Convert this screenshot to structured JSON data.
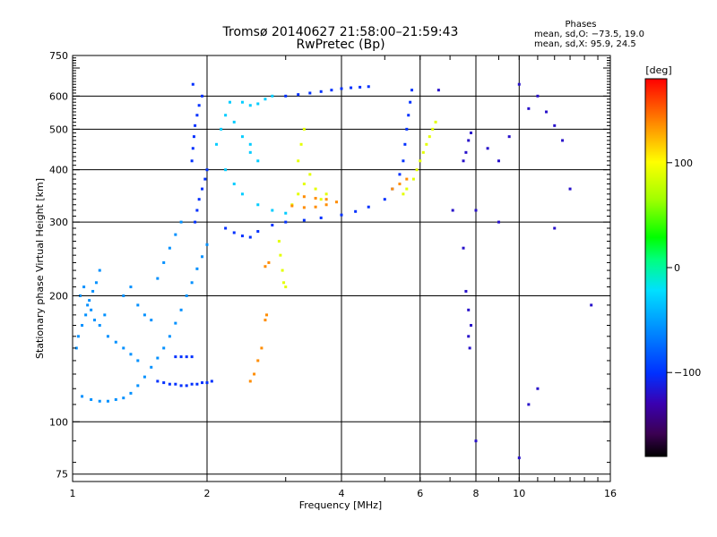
{
  "chart_data": {
    "type": "scatter",
    "title": "Tromsø 20140627 21:58:00–21:59:43",
    "subtitle": "RwPretec (Bp)",
    "phases": {
      "heading": "Phases",
      "line1": "mean, sd,O: −73.5, 19.0",
      "line2": "mean, sd,X:  95.9, 24.5"
    },
    "xlabel": "Frequency [MHz]",
    "ylabel": "Stationary phase Virtual Height [km]",
    "x_scale": "log",
    "y_scale": "log",
    "xlim": [
      1,
      16
    ],
    "ylim": [
      72,
      750
    ],
    "x_ticks": [
      1,
      2,
      4,
      6,
      8,
      10,
      16
    ],
    "x_tick_labels": [
      "1",
      "2",
      "4",
      "6",
      "8",
      "10",
      "16"
    ],
    "y_ticks": [
      75,
      100,
      200,
      300,
      400,
      500,
      600,
      750
    ],
    "y_tick_labels": [
      "75",
      "100",
      "200",
      "300",
      "400",
      "500",
      "600",
      "750"
    ],
    "grid": true,
    "colorbar": {
      "label": "[deg]",
      "range": [
        -180,
        180
      ],
      "ticks": [
        100,
        0,
        -100
      ],
      "tick_labels": [
        "100",
        "0",
        "−100"
      ]
    },
    "series": [
      {
        "color_hint": "light-blue",
        "phase": -60,
        "points": [
          [
            1.05,
            115
          ],
          [
            1.1,
            113
          ],
          [
            1.15,
            112
          ],
          [
            1.2,
            112
          ],
          [
            1.25,
            113
          ],
          [
            1.3,
            114
          ],
          [
            1.35,
            117
          ],
          [
            1.4,
            122
          ],
          [
            1.45,
            128
          ],
          [
            1.5,
            135
          ],
          [
            1.55,
            142
          ],
          [
            1.6,
            150
          ],
          [
            1.65,
            160
          ],
          [
            1.7,
            172
          ],
          [
            1.75,
            185
          ],
          [
            1.8,
            200
          ],
          [
            1.85,
            215
          ],
          [
            1.9,
            232
          ],
          [
            1.95,
            248
          ],
          [
            2.0,
            265
          ],
          [
            1.04,
            200
          ],
          [
            1.06,
            210
          ],
          [
            1.08,
            190
          ],
          [
            1.1,
            185
          ],
          [
            1.12,
            175
          ],
          [
            1.15,
            170
          ],
          [
            1.18,
            180
          ],
          [
            1.2,
            160
          ],
          [
            1.25,
            155
          ],
          [
            1.3,
            150
          ],
          [
            1.35,
            145
          ],
          [
            1.4,
            140
          ],
          [
            1.02,
            150
          ],
          [
            1.03,
            160
          ],
          [
            1.05,
            170
          ],
          [
            1.07,
            180
          ],
          [
            1.09,
            195
          ],
          [
            1.11,
            205
          ],
          [
            1.13,
            215
          ],
          [
            1.15,
            230
          ],
          [
            1.3,
            200
          ],
          [
            1.35,
            210
          ],
          [
            1.4,
            190
          ],
          [
            1.45,
            180
          ],
          [
            1.5,
            175
          ],
          [
            1.55,
            220
          ],
          [
            1.6,
            240
          ],
          [
            1.65,
            260
          ],
          [
            1.7,
            280
          ],
          [
            1.75,
            300
          ]
        ]
      },
      {
        "color_hint": "blue",
        "phase": -100,
        "points": [
          [
            1.55,
            125
          ],
          [
            1.6,
            124
          ],
          [
            1.65,
            123
          ],
          [
            1.7,
            123
          ],
          [
            1.75,
            122
          ],
          [
            1.8,
            122
          ],
          [
            1.85,
            123
          ],
          [
            1.9,
            123
          ],
          [
            1.95,
            124
          ],
          [
            2.0,
            124
          ],
          [
            2.05,
            125
          ],
          [
            1.7,
            143
          ],
          [
            1.75,
            143
          ],
          [
            1.8,
            143
          ],
          [
            1.85,
            143
          ],
          [
            1.88,
            300
          ],
          [
            1.9,
            320
          ],
          [
            1.92,
            340
          ],
          [
            1.95,
            360
          ],
          [
            1.98,
            380
          ],
          [
            2.0,
            400
          ],
          [
            1.85,
            420
          ],
          [
            1.86,
            450
          ],
          [
            1.87,
            480
          ],
          [
            1.88,
            510
          ],
          [
            1.9,
            540
          ],
          [
            1.92,
            570
          ],
          [
            1.95,
            600
          ],
          [
            1.86,
            640
          ],
          [
            2.2,
            290
          ],
          [
            2.3,
            283
          ],
          [
            2.4,
            278
          ],
          [
            2.5,
            276
          ],
          [
            2.6,
            285
          ],
          [
            2.8,
            295
          ],
          [
            3.0,
            300
          ],
          [
            3.3,
            303
          ],
          [
            3.6,
            307
          ],
          [
            4.0,
            312
          ],
          [
            4.3,
            318
          ],
          [
            4.6,
            326
          ],
          [
            5.0,
            340
          ],
          [
            5.2,
            360
          ],
          [
            5.4,
            390
          ],
          [
            5.5,
            420
          ],
          [
            5.55,
            460
          ],
          [
            5.6,
            500
          ],
          [
            5.65,
            540
          ],
          [
            5.7,
            580
          ],
          [
            5.75,
            620
          ],
          [
            3.0,
            600
          ],
          [
            3.2,
            605
          ],
          [
            3.4,
            610
          ],
          [
            3.6,
            615
          ],
          [
            3.8,
            620
          ],
          [
            4.0,
            625
          ],
          [
            4.2,
            628
          ],
          [
            4.4,
            630
          ],
          [
            4.6,
            632
          ]
        ]
      },
      {
        "color_hint": "cyan",
        "phase": -30,
        "points": [
          [
            2.4,
            580
          ],
          [
            2.5,
            570
          ],
          [
            2.6,
            575
          ],
          [
            2.7,
            590
          ],
          [
            2.8,
            600
          ],
          [
            2.3,
            520
          ],
          [
            2.4,
            480
          ],
          [
            2.5,
            440
          ],
          [
            2.2,
            400
          ],
          [
            2.3,
            370
          ],
          [
            2.4,
            350
          ],
          [
            2.6,
            330
          ],
          [
            2.8,
            320
          ],
          [
            3.0,
            315
          ],
          [
            2.1,
            460
          ],
          [
            2.15,
            500
          ],
          [
            2.2,
            540
          ],
          [
            2.25,
            580
          ],
          [
            2.5,
            460
          ],
          [
            2.6,
            420
          ]
        ]
      },
      {
        "color_hint": "yellow",
        "phase": 90,
        "points": [
          [
            2.9,
            270
          ],
          [
            2.92,
            250
          ],
          [
            2.95,
            230
          ],
          [
            2.97,
            215
          ],
          [
            3.0,
            210
          ],
          [
            3.1,
            330
          ],
          [
            3.2,
            350
          ],
          [
            3.3,
            370
          ],
          [
            3.4,
            390
          ],
          [
            3.5,
            360
          ],
          [
            3.6,
            340
          ],
          [
            3.7,
            350
          ],
          [
            3.2,
            420
          ],
          [
            3.25,
            460
          ],
          [
            3.3,
            500
          ],
          [
            5.8,
            380
          ],
          [
            5.9,
            400
          ],
          [
            6.0,
            420
          ],
          [
            6.1,
            440
          ],
          [
            6.2,
            460
          ],
          [
            6.3,
            480
          ],
          [
            6.4,
            500
          ],
          [
            6.5,
            520
          ],
          [
            5.6,
            360
          ],
          [
            5.5,
            350
          ]
        ]
      },
      {
        "color_hint": "orange",
        "phase": 140,
        "points": [
          [
            3.1,
            328
          ],
          [
            3.3,
            325
          ],
          [
            3.5,
            326
          ],
          [
            3.7,
            330
          ],
          [
            3.9,
            335
          ],
          [
            3.3,
            345
          ],
          [
            3.5,
            342
          ],
          [
            3.7,
            340
          ],
          [
            2.5,
            125
          ],
          [
            2.55,
            130
          ],
          [
            2.6,
            140
          ],
          [
            2.65,
            150
          ],
          [
            2.7,
            175
          ],
          [
            2.72,
            180
          ],
          [
            5.2,
            360
          ],
          [
            5.4,
            370
          ],
          [
            5.6,
            380
          ],
          [
            2.7,
            235
          ],
          [
            2.75,
            240
          ]
        ]
      },
      {
        "color_hint": "scatter-mixed",
        "phase": -120,
        "points": [
          [
            7.5,
            420
          ],
          [
            7.6,
            440
          ],
          [
            7.7,
            470
          ],
          [
            7.8,
            490
          ],
          [
            7.6,
            205
          ],
          [
            7.7,
            185
          ],
          [
            7.8,
            170
          ],
          [
            7.7,
            160
          ],
          [
            7.75,
            150
          ],
          [
            8.5,
            450
          ],
          [
            9.0,
            420
          ],
          [
            9.5,
            480
          ],
          [
            10.0,
            640
          ],
          [
            10.5,
            560
          ],
          [
            11.0,
            600
          ],
          [
            11.5,
            550
          ],
          [
            12.0,
            510
          ],
          [
            12.5,
            470
          ],
          [
            13.0,
            360
          ],
          [
            12.0,
            290
          ],
          [
            11.0,
            120
          ],
          [
            10.5,
            110
          ],
          [
            8.0,
            90
          ],
          [
            10.0,
            82
          ],
          [
            7.5,
            260
          ],
          [
            8.0,
            320
          ],
          [
            9.0,
            300
          ],
          [
            6.6,
            620
          ],
          [
            7.1,
            320
          ],
          [
            14.5,
            190
          ]
        ]
      }
    ]
  }
}
